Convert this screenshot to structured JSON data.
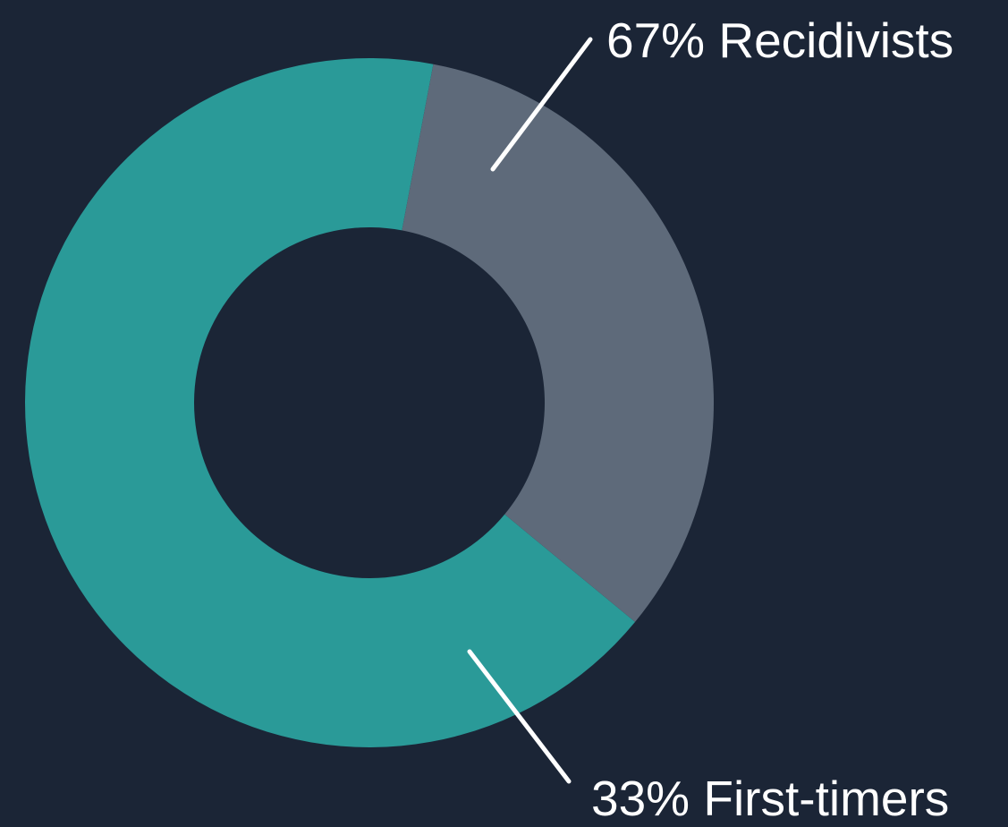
{
  "chart_data": {
    "type": "pie",
    "variant": "donut",
    "slices": [
      {
        "value": 67,
        "label": "67% Recidivists",
        "color": "#2a9a98"
      },
      {
        "value": 33,
        "label": "33% First-timers",
        "color": "#5e6a7a"
      }
    ],
    "title": "",
    "legend": "none",
    "background_color": "#1b2536",
    "leader_line_color": "#ffffff"
  }
}
